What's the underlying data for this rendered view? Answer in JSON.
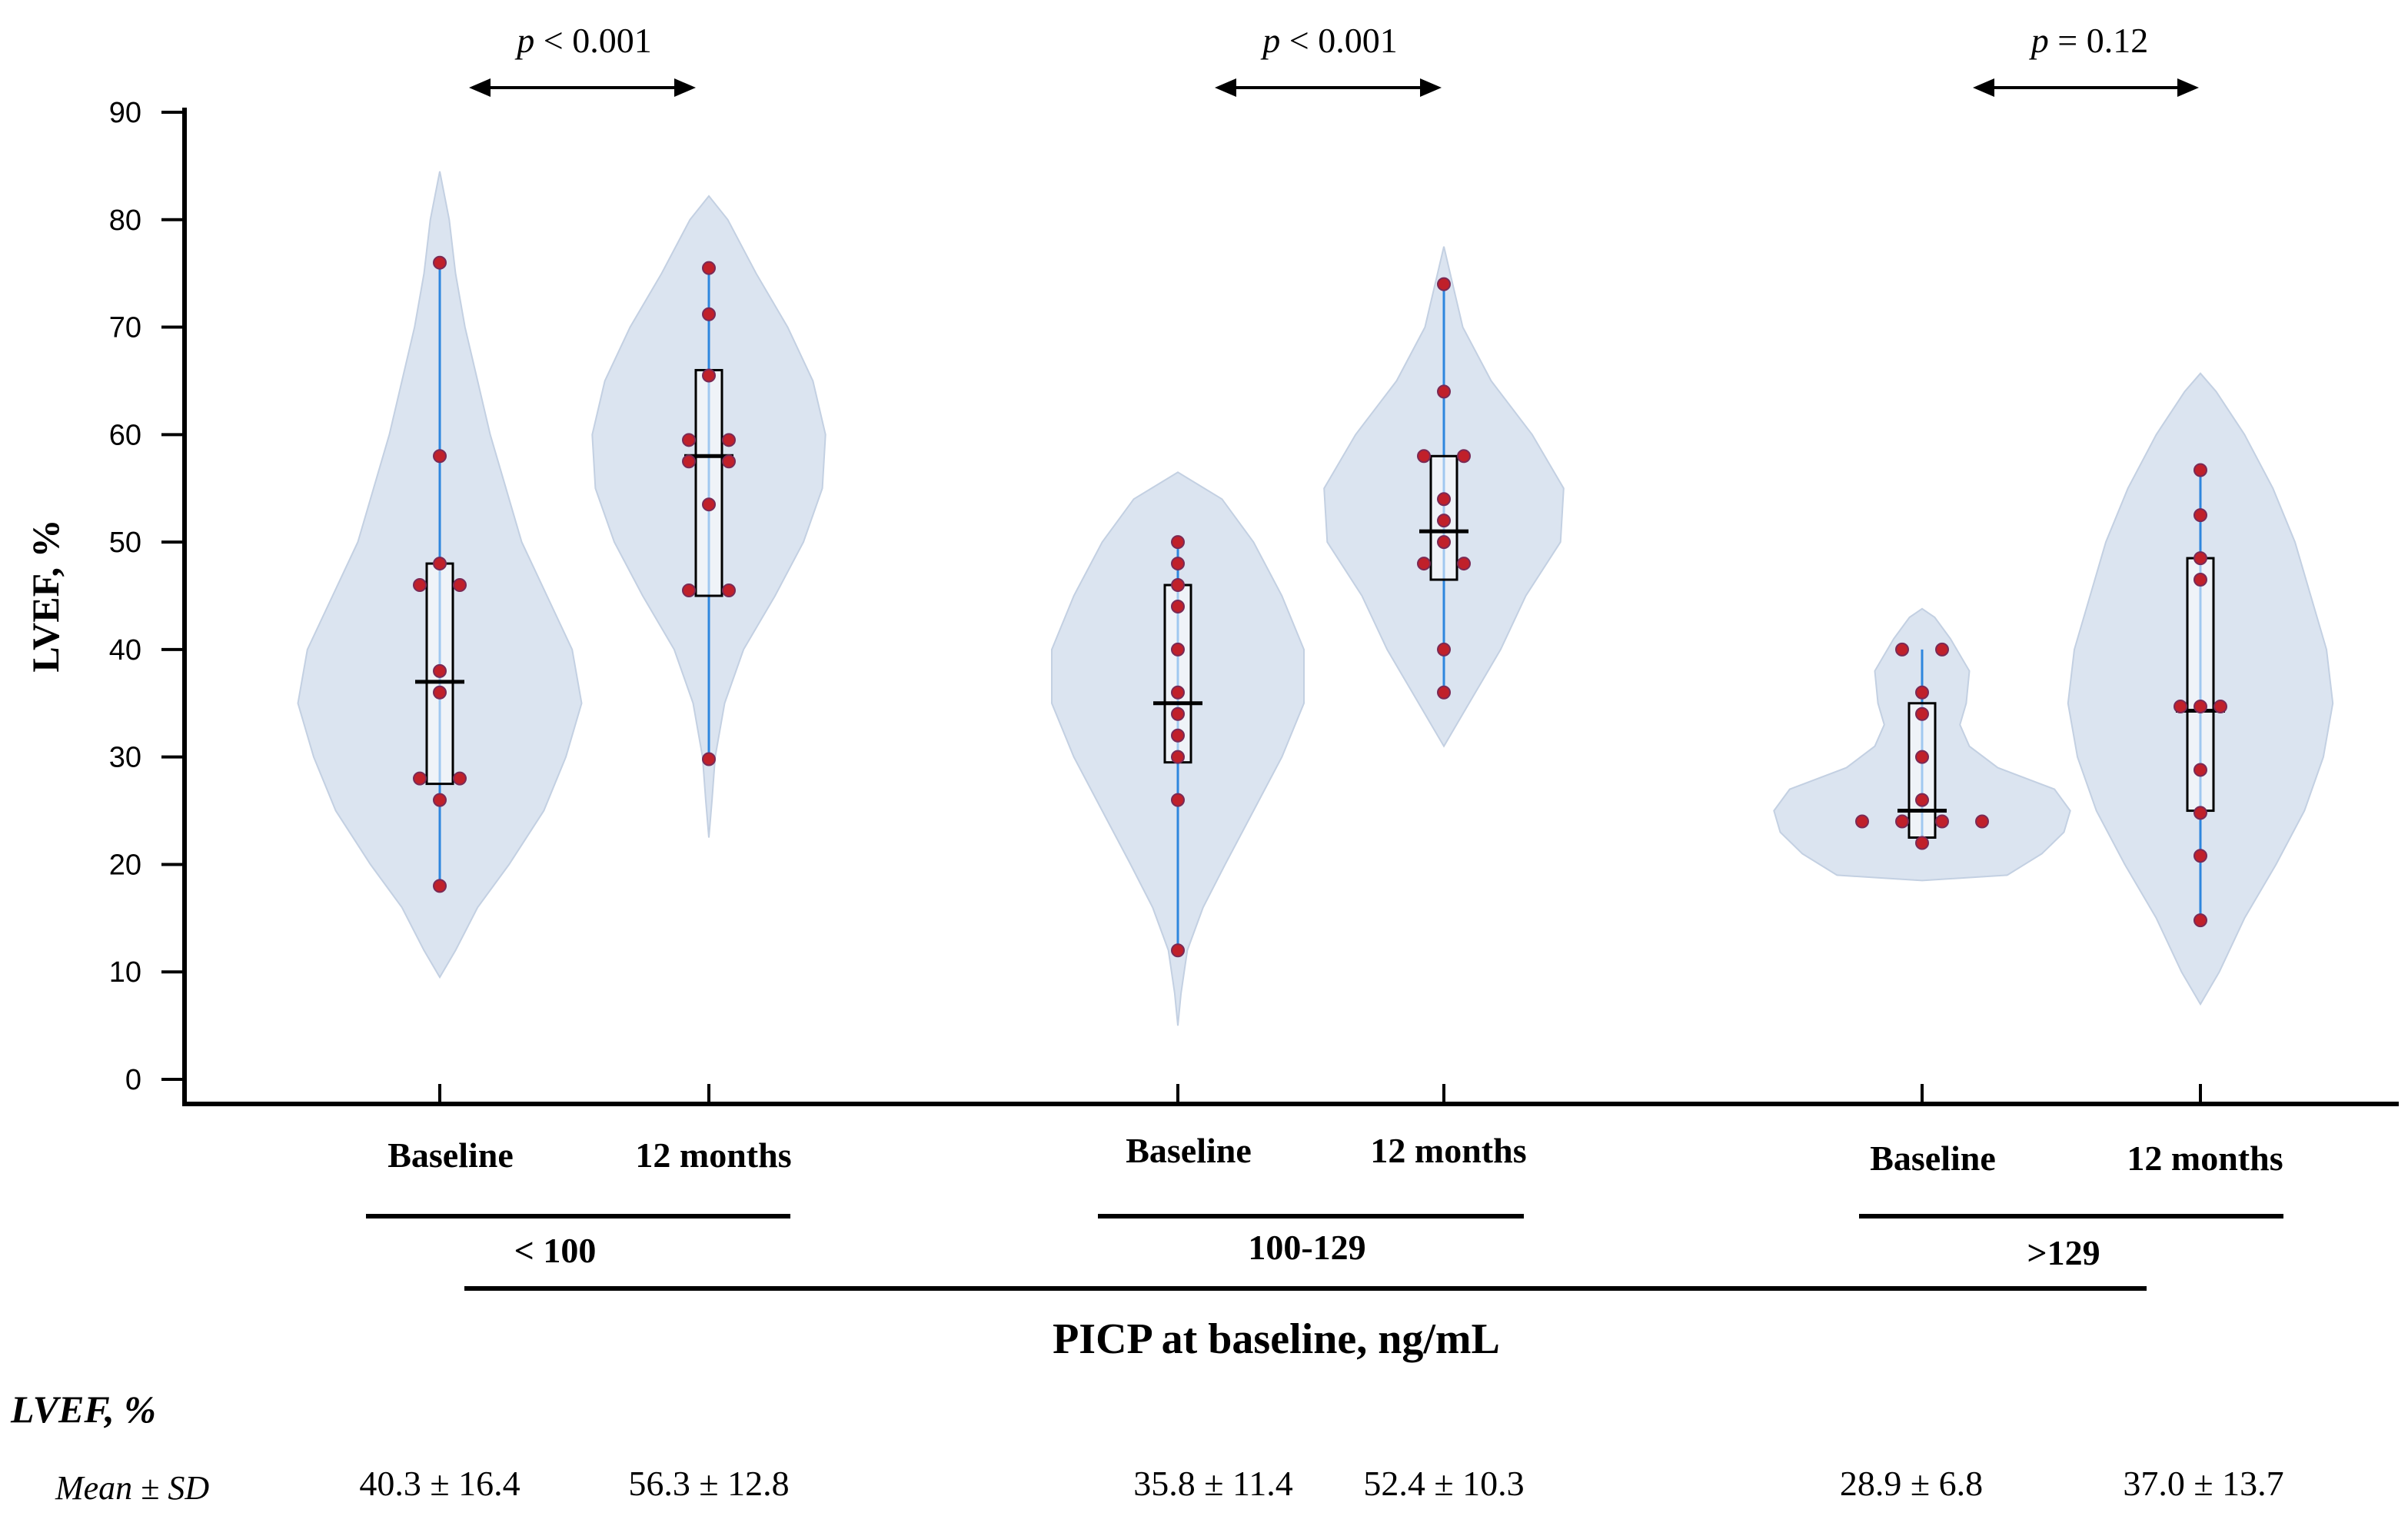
{
  "chart_data": {
    "type": "violin",
    "ylabel": "LVEF, %",
    "xlabel": "PICP at baseline, ng/mL",
    "ylim": [
      0,
      90
    ],
    "yticks": [
      "0",
      "10",
      "20",
      "30",
      "40",
      "50",
      "60",
      "70",
      "80",
      "90"
    ],
    "groups": [
      {
        "name": "< 100",
        "pvalue_prefix": "p",
        "pvalue_text": " < 0.001",
        "stats": [
          "40.3 ± 16.4",
          "56.3 ± 12.8"
        ],
        "violins": [
          {
            "label": "Baseline",
            "median": 37,
            "q1": 27.5,
            "q3": 48,
            "wlo": 18,
            "whi": 76,
            "profile": [
              [
                9.5,
                0
              ],
              [
                12,
                5
              ],
              [
                16,
                12
              ],
              [
                20,
                22
              ],
              [
                25,
                33
              ],
              [
                30,
                40
              ],
              [
                35,
                45
              ],
              [
                40,
                42
              ],
              [
                45,
                34
              ],
              [
                50,
                26
              ],
              [
                55,
                21
              ],
              [
                60,
                16
              ],
              [
                65,
                12
              ],
              [
                70,
                8
              ],
              [
                75,
                5
              ],
              [
                80,
                3
              ],
              [
                84.5,
                0
              ]
            ],
            "points": [
              [
                76,
                0
              ],
              [
                58,
                0
              ],
              [
                48,
                0
              ],
              [
                46,
                -1
              ],
              [
                46,
                1
              ],
              [
                38,
                0
              ],
              [
                36,
                0
              ],
              [
                28,
                -1
              ],
              [
                28,
                1
              ],
              [
                26,
                0
              ],
              [
                18,
                0
              ]
            ]
          },
          {
            "label": "12 months",
            "median": 58,
            "q1": 45,
            "q3": 66,
            "wlo": 29.5,
            "whi": 75.5,
            "profile": [
              [
                22.5,
                0
              ],
              [
                26,
                1
              ],
              [
                30,
                2
              ],
              [
                35,
                5
              ],
              [
                40,
                11
              ],
              [
                45,
                21
              ],
              [
                50,
                30
              ],
              [
                55,
                36
              ],
              [
                60,
                37
              ],
              [
                65,
                33
              ],
              [
                70,
                25
              ],
              [
                75,
                15
              ],
              [
                80,
                6
              ],
              [
                82.2,
                0
              ]
            ],
            "points": [
              [
                75.5,
                0
              ],
              [
                71.2,
                0
              ],
              [
                65.5,
                0
              ],
              [
                59.5,
                -1
              ],
              [
                59.5,
                1
              ],
              [
                57.5,
                -1
              ],
              [
                57.5,
                1
              ],
              [
                53.5,
                0
              ],
              [
                45.5,
                -1
              ],
              [
                45.5,
                1
              ],
              [
                29.8,
                0
              ]
            ]
          }
        ]
      },
      {
        "name": "100-129",
        "pvalue_prefix": "p",
        "pvalue_text": " < 0.001",
        "stats": [
          "35.8 ± 11.4",
          "52.4 ± 10.3"
        ],
        "violins": [
          {
            "label": "Baseline",
            "median": 35,
            "q1": 29.5,
            "q3": 46,
            "wlo": 12,
            "whi": 50,
            "profile": [
              [
                5,
                0
              ],
              [
                8,
                1
              ],
              [
                12,
                3
              ],
              [
                16,
                8
              ],
              [
                20,
                15
              ],
              [
                25,
                24
              ],
              [
                30,
                33
              ],
              [
                35,
                40
              ],
              [
                40,
                40
              ],
              [
                45,
                33
              ],
              [
                50,
                24
              ],
              [
                54,
                14
              ],
              [
                56.5,
                0
              ]
            ],
            "points": [
              [
                50,
                0
              ],
              [
                48,
                0
              ],
              [
                46,
                0
              ],
              [
                44,
                0
              ],
              [
                40,
                0
              ],
              [
                36,
                0
              ],
              [
                34,
                0
              ],
              [
                32,
                0
              ],
              [
                30,
                0
              ],
              [
                26,
                0
              ],
              [
                12,
                0
              ]
            ]
          },
          {
            "label": "12 months",
            "median": 51,
            "q1": 46.5,
            "q3": 58,
            "wlo": 36,
            "whi": 74,
            "profile": [
              [
                31,
                0
              ],
              [
                33,
                4
              ],
              [
                36,
                10
              ],
              [
                40,
                18
              ],
              [
                45,
                26
              ],
              [
                50,
                37
              ],
              [
                55,
                38
              ],
              [
                60,
                28
              ],
              [
                65,
                15
              ],
              [
                70,
                6
              ],
              [
                75,
                2
              ],
              [
                77.5,
                0
              ]
            ],
            "points": [
              [
                74,
                0
              ],
              [
                64,
                0
              ],
              [
                58,
                -1
              ],
              [
                58,
                1
              ],
              [
                54,
                0
              ],
              [
                52,
                0
              ],
              [
                50,
                0
              ],
              [
                48,
                -1
              ],
              [
                48,
                1
              ],
              [
                40,
                0
              ],
              [
                36,
                0
              ]
            ]
          }
        ]
      },
      {
        "name": ">129",
        "pvalue_prefix": "p",
        "pvalue_text": " = 0.12",
        "stats": [
          "28.9 ± 6.8",
          "37.0 ± 13.7"
        ],
        "violins": [
          {
            "label": "Baseline",
            "median": 25,
            "q1": 22.5,
            "q3": 35,
            "wlo": 22,
            "whi": 40,
            "profile": [
              [
                18.5,
                0
              ],
              [
                19,
                27
              ],
              [
                21,
                38
              ],
              [
                23,
                45
              ],
              [
                25,
                47
              ],
              [
                27,
                42
              ],
              [
                29,
                24
              ],
              [
                31,
                15
              ],
              [
                33,
                12
              ],
              [
                35,
                14
              ],
              [
                38,
                15
              ],
              [
                41,
                9
              ],
              [
                43,
                4
              ],
              [
                43.8,
                0
              ]
            ],
            "points": [
              [
                40,
                -1
              ],
              [
                40,
                1
              ],
              [
                36,
                0
              ],
              [
                34,
                0
              ],
              [
                30,
                0
              ],
              [
                26,
                0
              ],
              [
                24,
                -3
              ],
              [
                24,
                -1
              ],
              [
                24,
                1
              ],
              [
                24,
                3
              ],
              [
                22,
                0
              ]
            ]
          },
          {
            "label": "12 months",
            "median": 34.3,
            "q1": 25,
            "q3": 48.5,
            "wlo": 15,
            "whi": 57,
            "profile": [
              [
                7,
                0
              ],
              [
                10,
                6
              ],
              [
                15,
                14
              ],
              [
                20,
                24
              ],
              [
                25,
                33
              ],
              [
                30,
                39
              ],
              [
                35,
                42
              ],
              [
                40,
                40
              ],
              [
                45,
                35
              ],
              [
                50,
                30
              ],
              [
                55,
                23
              ],
              [
                60,
                14
              ],
              [
                64,
                5
              ],
              [
                65.7,
                0
              ]
            ],
            "points": [
              [
                56.7,
                0
              ],
              [
                52.5,
                0
              ],
              [
                48.5,
                0
              ],
              [
                46.5,
                0
              ],
              [
                34.7,
                -1
              ],
              [
                34.7,
                0
              ],
              [
                34.7,
                1
              ],
              [
                28.8,
                0
              ],
              [
                24.8,
                0
              ],
              [
                20.8,
                0
              ],
              [
                14.8,
                0
              ]
            ]
          }
        ]
      }
    ],
    "stats_header": "LVEF, %",
    "stats_row_label": "Mean ± SD"
  },
  "colors": {
    "violin_fill": "#dbe4f0",
    "violin_stroke": "#c3d0e2",
    "whisker": "#2e86de",
    "point_fill": "#c0202a",
    "point_stroke": "#7a2a55",
    "axis": "#000000"
  }
}
